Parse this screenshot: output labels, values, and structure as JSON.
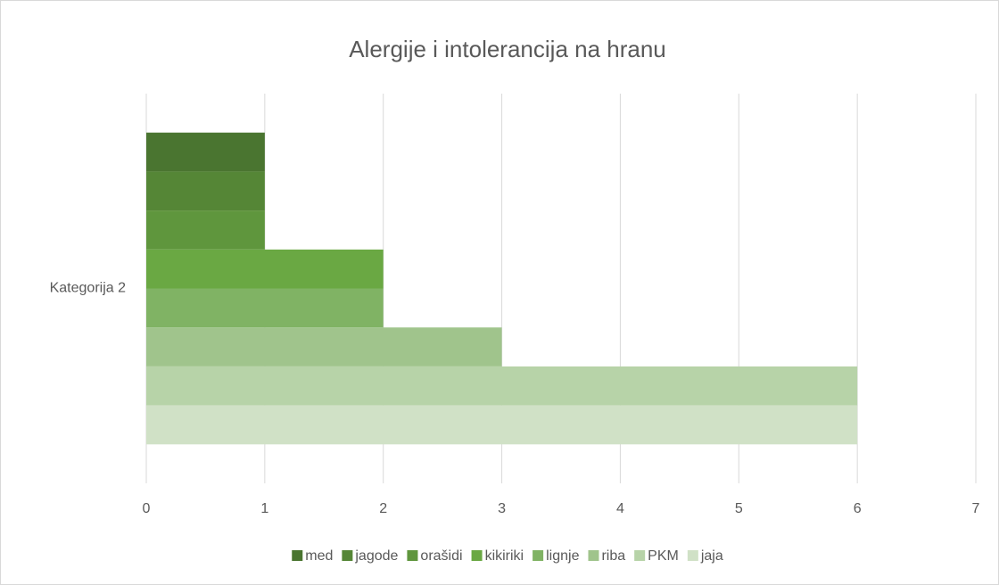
{
  "chart_data": {
    "type": "bar",
    "orientation": "horizontal",
    "title": "Alergije i intolerancija na hranu",
    "categories": [
      "Kategorija 2"
    ],
    "series": [
      {
        "name": "med",
        "color": "#4a7530",
        "values": [
          1
        ]
      },
      {
        "name": "jagode",
        "color": "#558636",
        "values": [
          1
        ]
      },
      {
        "name": "orašidi",
        "color": "#5f963d",
        "values": [
          1
        ]
      },
      {
        "name": "kikiriki",
        "color": "#6aa843",
        "values": [
          2
        ]
      },
      {
        "name": "lignje",
        "color": "#80b364",
        "values": [
          2
        ]
      },
      {
        "name": "riba",
        "color": "#a0c48c",
        "values": [
          3
        ]
      },
      {
        "name": "PKM",
        "color": "#b7d3a8",
        "values": [
          6
        ]
      },
      {
        "name": "jaja",
        "color": "#d0e1c6",
        "values": [
          6
        ]
      }
    ],
    "xlim": [
      0,
      7
    ],
    "xticks": [
      0,
      1,
      2,
      3,
      4,
      5,
      6,
      7
    ],
    "grid": true,
    "legend": "bottom"
  }
}
